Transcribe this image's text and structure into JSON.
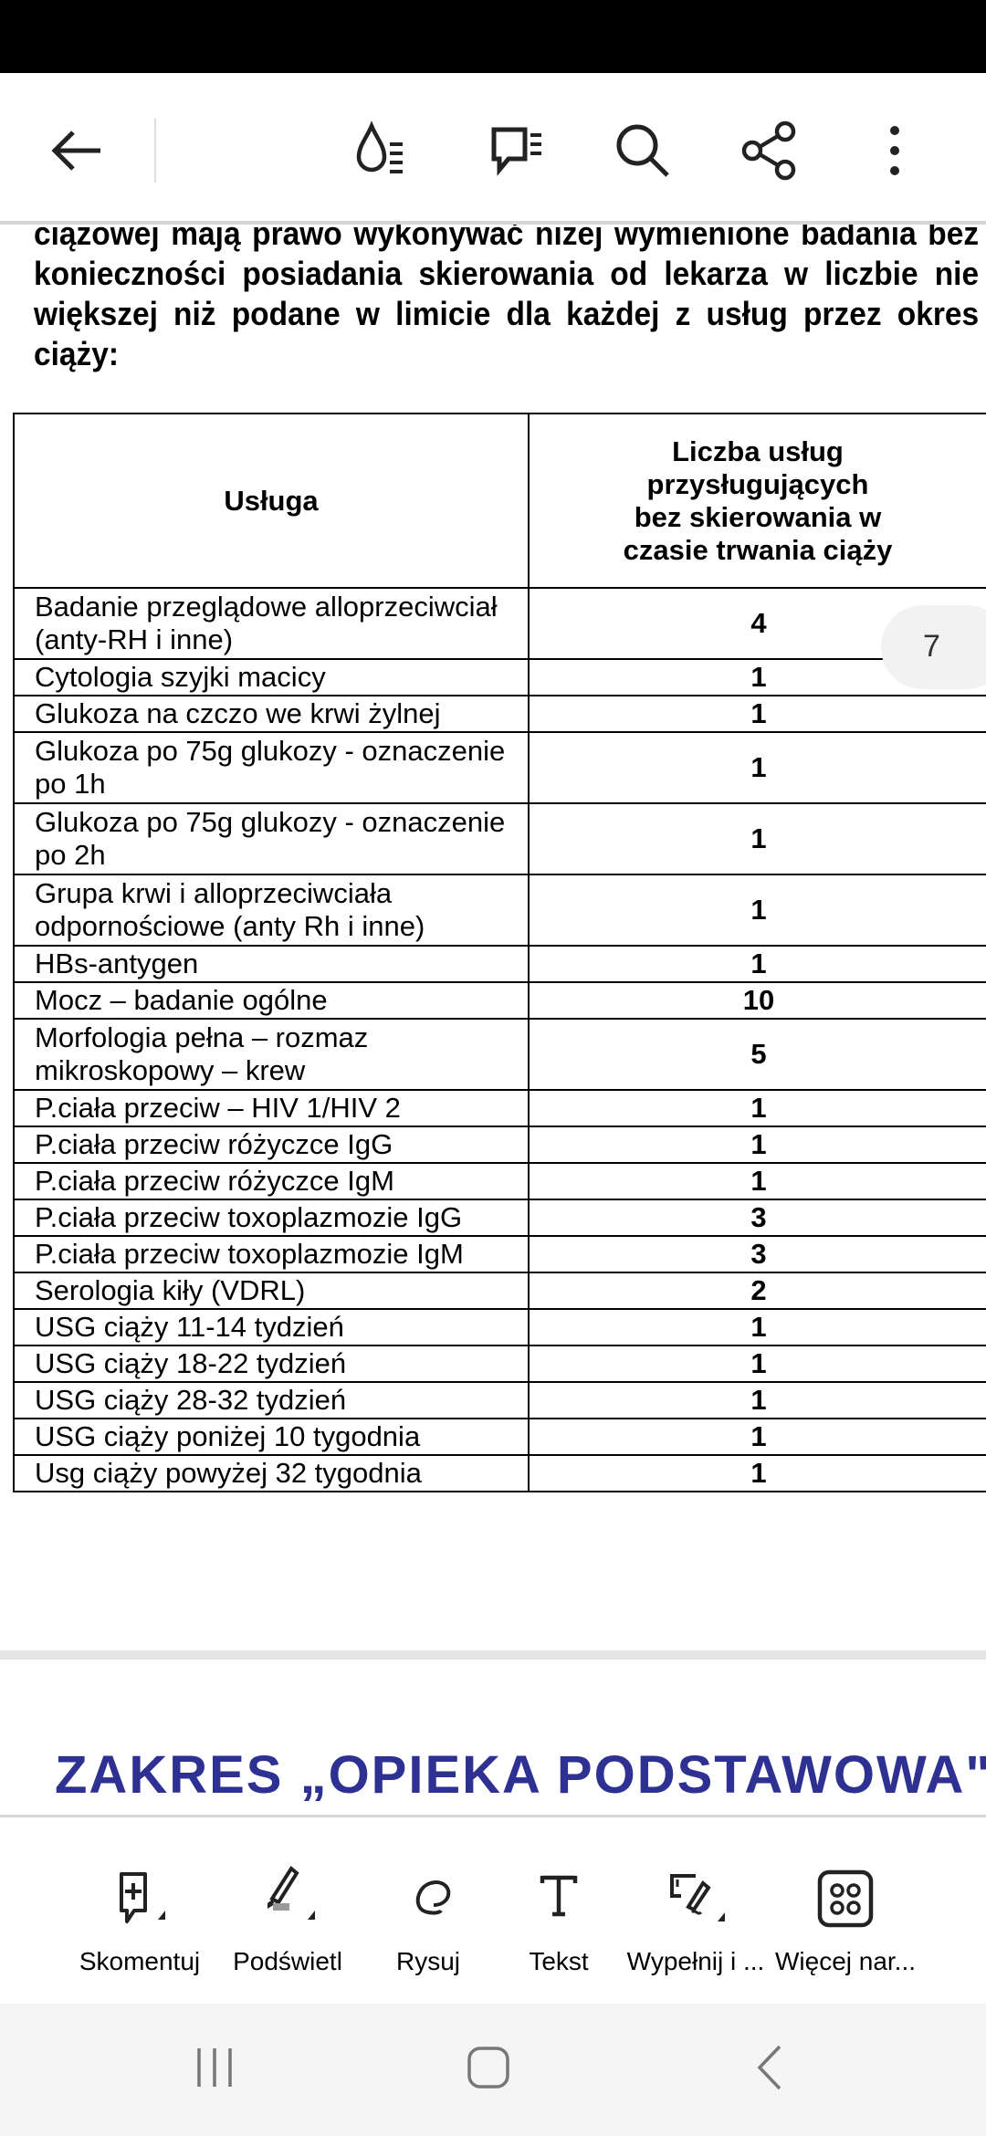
{
  "document": {
    "paragraph": "ciążowej mają prawo wykonywać niżej wymienione badania bez konieczności posiadania skierowania od lekarza w liczbie nie większej niż podane w limicie dla każdej z usług przez okres ciąży:",
    "table": {
      "headers": [
        "Usługa",
        "Liczba usług przysługujących bez skierowania w czasie trwania ciąży"
      ],
      "rows": [
        [
          "Badanie przeglądowe alloprzeciwciał (anty-RH i inne)",
          "4"
        ],
        [
          "Cytologia szyjki macicy",
          "1"
        ],
        [
          "Glukoza na czczo we krwi żylnej",
          "1"
        ],
        [
          "Glukoza po 75g glukozy - oznaczenie po 1h",
          "1"
        ],
        [
          "Glukoza po 75g glukozy - oznaczenie po 2h",
          "1"
        ],
        [
          "Grupa krwi i alloprzeciwciała odpornościowe (anty Rh i inne)",
          "1"
        ],
        [
          "HBs-antygen",
          "1"
        ],
        [
          "Mocz – badanie ogólne",
          "10"
        ],
        [
          "Morfologia pełna – rozmaz mikroskopowy – krew",
          "5"
        ],
        [
          "P.ciała przeciw – HIV 1/HIV 2",
          "1"
        ],
        [
          "P.ciała przeciw różyczce IgG",
          "1"
        ],
        [
          "P.ciała przeciw różyczce IgM",
          "1"
        ],
        [
          "P.ciała przeciw toxoplazmozie IgG",
          "3"
        ],
        [
          "P.ciała przeciw toxoplazmozie IgM",
          "3"
        ],
        [
          "Serologia kiły (VDRL)",
          "2"
        ],
        [
          "USG ciąży 11-14 tydzień",
          "1"
        ],
        [
          "USG ciąży 18-22 tydzień",
          "1"
        ],
        [
          "USG ciąży 28-32 tydzień",
          "1"
        ],
        [
          "USG ciąży poniżej 10 tygodnia",
          "1"
        ],
        [
          "Usg ciąży powyżej 32 tygodnia",
          "1"
        ]
      ]
    },
    "page_number": "7",
    "next_page_heading": "ZAKRES „OPIEKA PODSTAWOWA\"",
    "next_heading_color": "#2e3192"
  },
  "appbar": {
    "icons": [
      "back-arrow",
      "read-mode-icon",
      "comments-list-icon",
      "search-icon",
      "share-icon",
      "more-vert-icon"
    ]
  },
  "toolbar": {
    "items": [
      {
        "label": "Skomentuj",
        "icon": "comment-add-icon"
      },
      {
        "label": "Podświetl",
        "icon": "highlighter-icon"
      },
      {
        "label": "Rysuj",
        "icon": "draw-icon"
      },
      {
        "label": "Tekst",
        "icon": "text-icon"
      },
      {
        "label": "Wypełnij i ...",
        "icon": "fill-sign-icon"
      },
      {
        "label": "Więcej nar...",
        "icon": "more-tools-icon"
      }
    ]
  }
}
